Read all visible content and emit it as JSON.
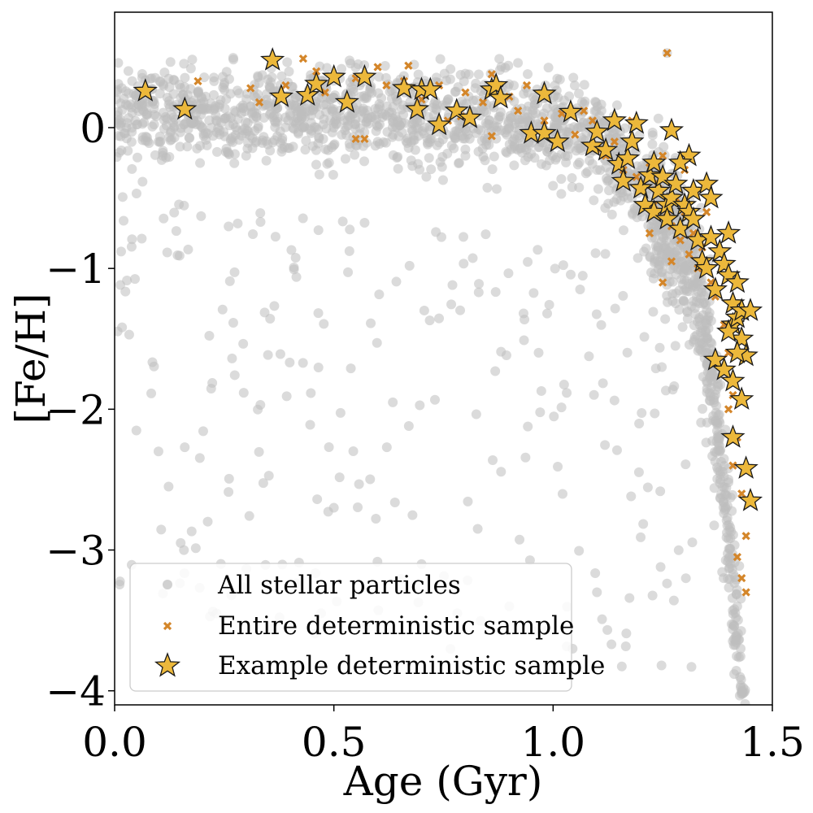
{
  "chart_data": {
    "type": "scatter",
    "title": "",
    "xlabel": "Age (Gyr)",
    "ylabel": "[Fe/H]",
    "xlim": [
      0.0,
      1.5
    ],
    "ylim": [
      -4.1,
      0.82
    ],
    "xticks": [
      0.0,
      0.5,
      1.0,
      1.5
    ],
    "xtick_labels": [
      "0.0",
      "0.5",
      "1.0",
      "1.5"
    ],
    "yticks": [
      0,
      -1,
      -2,
      -3,
      -4
    ],
    "ytick_labels": [
      "0",
      "−1",
      "−2",
      "−3",
      "−4"
    ],
    "grid": false,
    "legend_position": "lower-left",
    "colors": {
      "all": "#bdbdbd",
      "entire": "#d4862a",
      "example_fill": "#ecb83b",
      "example_edge": "#1a1a1a"
    },
    "series": [
      {
        "name": "All stellar particles",
        "marker": "circle",
        "color": "#bdbdbd",
        "distribution": "dense band: [Fe/H] ~0.4 to -0.4 for ages 0-1.0 Gyr, bending down steeply to -4 near 1.3-1.45 Gyr, with scattered outliers below",
        "sample_points": [
          [
            0.05,
            0.2
          ],
          [
            0.1,
            -0.1
          ],
          [
            0.2,
            0.0
          ],
          [
            0.3,
            -0.2
          ],
          [
            0.4,
            0.1
          ],
          [
            0.5,
            0.0
          ],
          [
            0.6,
            -0.1
          ],
          [
            0.7,
            0.1
          ],
          [
            0.8,
            -0.2
          ],
          [
            0.9,
            0.0
          ],
          [
            1.0,
            -0.1
          ],
          [
            1.1,
            -0.3
          ],
          [
            1.2,
            -0.6
          ],
          [
            1.3,
            -1.0
          ],
          [
            1.35,
            -1.8
          ],
          [
            1.4,
            -2.5
          ],
          [
            1.42,
            -3.4
          ],
          [
            1.43,
            -4.0
          ],
          [
            0.1,
            -2.3
          ],
          [
            0.5,
            -2.7
          ],
          [
            0.7,
            -3.1
          ],
          [
            0.9,
            -3.4
          ],
          [
            1.1,
            -3.3
          ],
          [
            1.26,
            0.53
          ]
        ]
      },
      {
        "name": "Entire deterministic sample",
        "marker": "x",
        "color": "#d4862a",
        "points": [
          [
            0.19,
            0.33
          ],
          [
            0.31,
            0.28
          ],
          [
            0.33,
            0.18
          ],
          [
            0.39,
            0.3
          ],
          [
            0.43,
            0.49
          ],
          [
            0.46,
            0.4
          ],
          [
            0.48,
            0.25
          ],
          [
            0.55,
            0.35
          ],
          [
            0.6,
            0.43
          ],
          [
            0.62,
            0.3
          ],
          [
            0.66,
            0.33
          ],
          [
            0.67,
            0.44
          ],
          [
            0.7,
            0.2
          ],
          [
            0.74,
            0.3
          ],
          [
            0.76,
            0.05
          ],
          [
            0.8,
            0.25
          ],
          [
            0.84,
            0.18
          ],
          [
            0.86,
            0.38
          ],
          [
            0.9,
            0.22
          ],
          [
            0.94,
            0.3
          ],
          [
            0.55,
            -0.08
          ],
          [
            0.57,
            -0.08
          ],
          [
            0.79,
            0.08
          ],
          [
            0.86,
            -0.06
          ],
          [
            0.92,
            0.12
          ],
          [
            0.98,
            0.05
          ],
          [
            1.02,
            0.1
          ],
          [
            1.05,
            -0.05
          ],
          [
            1.07,
            0.12
          ],
          [
            1.09,
            0.05
          ],
          [
            1.1,
            -0.15
          ],
          [
            1.12,
            -0.2
          ],
          [
            1.14,
            -0.1
          ],
          [
            1.16,
            -0.3
          ],
          [
            1.18,
            0.05
          ],
          [
            1.19,
            -0.35
          ],
          [
            1.2,
            -0.45
          ],
          [
            1.22,
            -0.25
          ],
          [
            1.23,
            -0.55
          ],
          [
            1.24,
            -0.4
          ],
          [
            1.25,
            -0.2
          ],
          [
            1.26,
            -0.6
          ],
          [
            1.27,
            -0.7
          ],
          [
            1.28,
            -0.5
          ],
          [
            1.29,
            -0.8
          ],
          [
            1.3,
            -0.6
          ],
          [
            1.31,
            -0.9
          ],
          [
            1.32,
            -0.75
          ],
          [
            1.33,
            -1.0
          ],
          [
            1.34,
            -0.85
          ],
          [
            1.35,
            -0.6
          ],
          [
            1.36,
            -1.1
          ],
          [
            1.37,
            -1.2
          ],
          [
            1.38,
            -0.9
          ],
          [
            1.39,
            -1.4
          ],
          [
            1.4,
            -1.6
          ],
          [
            1.41,
            -1.9
          ],
          [
            1.42,
            -2.2
          ],
          [
            1.43,
            -2.6
          ],
          [
            1.44,
            -2.9
          ],
          [
            1.42,
            -3.05
          ],
          [
            1.43,
            -3.2
          ],
          [
            1.44,
            -3.3
          ],
          [
            1.41,
            -2.4
          ],
          [
            1.4,
            -2.0
          ],
          [
            1.26,
            0.53
          ],
          [
            1.25,
            -1.1
          ],
          [
            1.27,
            -0.95
          ],
          [
            1.3,
            -0.3
          ],
          [
            1.22,
            -0.75
          ]
        ]
      },
      {
        "name": "Example deterministic sample",
        "marker": "star",
        "color": "#ecb83b",
        "points": [
          [
            0.07,
            0.26
          ],
          [
            0.16,
            0.13
          ],
          [
            0.36,
            0.48
          ],
          [
            0.38,
            0.22
          ],
          [
            0.44,
            0.23
          ],
          [
            0.46,
            0.31
          ],
          [
            0.5,
            0.36
          ],
          [
            0.53,
            0.18
          ],
          [
            0.57,
            0.36
          ],
          [
            0.66,
            0.28
          ],
          [
            0.69,
            0.13
          ],
          [
            0.7,
            0.27
          ],
          [
            0.72,
            0.27
          ],
          [
            0.74,
            0.02
          ],
          [
            0.78,
            0.12
          ],
          [
            0.81,
            0.07
          ],
          [
            0.86,
            0.27
          ],
          [
            0.87,
            0.3
          ],
          [
            0.88,
            0.21
          ],
          [
            0.95,
            -0.04
          ],
          [
            0.98,
            -0.04
          ],
          [
            0.98,
            0.24
          ],
          [
            1.01,
            -0.1
          ],
          [
            1.04,
            0.11
          ],
          [
            1.09,
            -0.13
          ],
          [
            1.1,
            -0.03
          ],
          [
            1.12,
            -0.16
          ],
          [
            1.14,
            0.05
          ],
          [
            1.15,
            -0.26
          ],
          [
            1.16,
            -0.38
          ],
          [
            1.17,
            -0.22
          ],
          [
            1.18,
            -0.1
          ],
          [
            1.19,
            0.03
          ],
          [
            1.2,
            -0.43
          ],
          [
            1.21,
            -0.55
          ],
          [
            1.22,
            -0.34
          ],
          [
            1.23,
            -0.6
          ],
          [
            1.23,
            -0.25
          ],
          [
            1.24,
            -0.45
          ],
          [
            1.25,
            -0.35
          ],
          [
            1.26,
            -0.55
          ],
          [
            1.26,
            -0.65
          ],
          [
            1.27,
            -0.5
          ],
          [
            1.27,
            -0.02
          ],
          [
            1.28,
            -0.4
          ],
          [
            1.29,
            -0.72
          ],
          [
            1.3,
            -0.55
          ],
          [
            1.31,
            -0.2
          ],
          [
            1.31,
            -0.6
          ],
          [
            1.32,
            -0.45
          ],
          [
            1.33,
            -0.8
          ],
          [
            1.34,
            -0.95
          ],
          [
            1.35,
            -0.4
          ],
          [
            1.36,
            -0.5
          ],
          [
            1.36,
            -0.78
          ],
          [
            1.37,
            -1.15
          ],
          [
            1.38,
            -0.88
          ],
          [
            1.39,
            -0.97
          ],
          [
            1.4,
            -0.75
          ],
          [
            1.4,
            -1.05
          ],
          [
            1.41,
            -1.25
          ],
          [
            1.41,
            -1.4
          ],
          [
            1.42,
            -1.1
          ],
          [
            1.42,
            -1.35
          ],
          [
            1.43,
            -1.3
          ],
          [
            1.43,
            -1.5
          ],
          [
            1.44,
            -1.62
          ],
          [
            1.45,
            -1.3
          ],
          [
            1.37,
            -1.65
          ],
          [
            1.39,
            -1.72
          ],
          [
            1.41,
            -1.8
          ],
          [
            1.42,
            -1.6
          ],
          [
            1.43,
            -1.93
          ],
          [
            1.41,
            -2.2
          ],
          [
            1.44,
            -2.42
          ],
          [
            1.45,
            -2.65
          ],
          [
            1.4,
            -1.45
          ],
          [
            1.35,
            -1.0
          ],
          [
            1.29,
            -0.25
          ],
          [
            1.32,
            -0.65
          ]
        ]
      }
    ]
  }
}
